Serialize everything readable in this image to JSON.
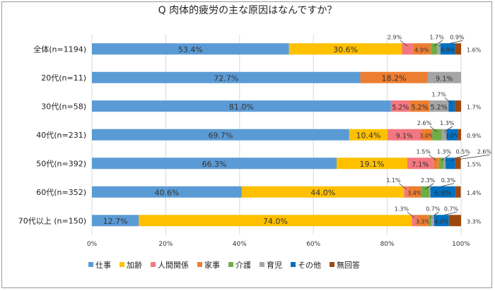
{
  "chart_data": {
    "type": "bar",
    "stacked": "100%",
    "orientation": "horizontal",
    "title": "Q 肉体的疲労の主な原因はなんですか？",
    "categories": [
      "全体(n=1194)",
      "20代(n=11)",
      "30代(n=58)",
      "40代(n=231)",
      "50代(n=392)",
      "60代(n=352)",
      "70代以上 (n=150)"
    ],
    "series": [
      {
        "name": "仕事",
        "color": "#5B9BD5",
        "values": [
          53.4,
          72.7,
          81.0,
          69.7,
          66.3,
          40.6,
          12.7
        ]
      },
      {
        "name": "加齢",
        "color": "#FFC000",
        "values": [
          30.6,
          0,
          0,
          10.4,
          19.1,
          44.0,
          74.0
        ]
      },
      {
        "name": "人間関係",
        "color": "#F4777F",
        "values": [
          2.9,
          0,
          5.2,
          9.1,
          7.1,
          1.1,
          1.3
        ]
      },
      {
        "name": "家事",
        "color": "#ED7D31",
        "values": [
          4.9,
          18.2,
          5.2,
          3.0,
          1.5,
          3.4,
          3.3
        ]
      },
      {
        "name": "介護",
        "color": "#70AD47",
        "values": [
          1.7,
          0,
          0,
          2.6,
          1.3,
          2.3,
          0.7
        ]
      },
      {
        "name": "育児",
        "color": "#A5A5A5",
        "values": [
          0.9,
          9.1,
          5.2,
          1.3,
          0.5,
          0.3,
          0.7
        ]
      },
      {
        "name": "その他",
        "color": "#0070C0",
        "values": [
          4.0,
          0,
          1.7,
          3.0,
          2.6,
          6.8,
          4.0
        ]
      },
      {
        "name": "無回答",
        "color": "#9E480E",
        "values": [
          1.6,
          0,
          1.7,
          0.9,
          1.5,
          1.4,
          3.3
        ]
      }
    ],
    "xlim": [
      0,
      100
    ],
    "xticks": [
      "0%",
      "20%",
      "40%",
      "60%",
      "80%",
      "100%"
    ],
    "grid": true,
    "legend": "bottom"
  }
}
